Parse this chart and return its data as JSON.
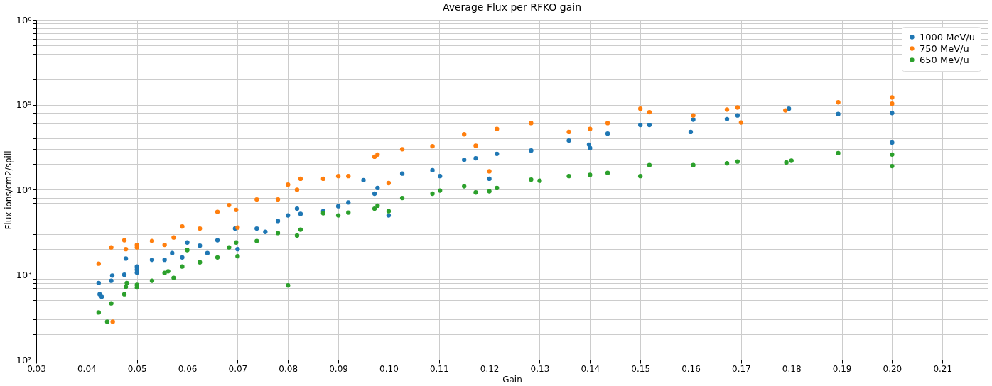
{
  "chart_data": {
    "type": "scatter",
    "title": "Average Flux per RFKO gain",
    "xlabel": "Gain",
    "ylabel": "Flux ions/cm2/spill",
    "log": "y",
    "grid": true,
    "legend": "top right",
    "marker": "circle",
    "xlim": [
      0.03,
      0.219
    ],
    "ylim": [
      100,
      1000000
    ],
    "xticks": [
      0.03,
      0.04,
      0.05,
      0.06,
      0.07,
      0.08,
      0.09,
      {
        "value": 0.1,
        "label": "0.10"
      },
      0.11,
      0.12,
      0.13,
      0.14,
      0.15,
      0.16,
      0.17,
      0.18,
      0.19,
      {
        "value": 0.2,
        "label": "0.20"
      },
      0.21
    ],
    "yticks": [
      {
        "value": 100,
        "label": "10²"
      },
      {
        "value": 200,
        "label": null
      },
      {
        "value": 300,
        "label": null
      },
      {
        "value": 400,
        "label": null
      },
      {
        "value": 500,
        "label": null
      },
      {
        "value": 600,
        "label": null
      },
      {
        "value": 700,
        "label": null
      },
      {
        "value": 800,
        "label": null
      },
      {
        "value": 900,
        "label": null
      },
      {
        "value": 1000,
        "label": "10³"
      },
      {
        "value": 2000,
        "label": null
      },
      {
        "value": 3000,
        "label": null
      },
      {
        "value": 4000,
        "label": null
      },
      {
        "value": 5000,
        "label": null
      },
      {
        "value": 6000,
        "label": null
      },
      {
        "value": 7000,
        "label": null
      },
      {
        "value": 8000,
        "label": null
      },
      {
        "value": 9000,
        "label": null
      },
      {
        "value": 10000,
        "label": "10⁴"
      },
      {
        "value": 20000,
        "label": null
      },
      {
        "value": 30000,
        "label": null
      },
      {
        "value": 40000,
        "label": null
      },
      {
        "value": 50000,
        "label": null
      },
      {
        "value": 60000,
        "label": null
      },
      {
        "value": 70000,
        "label": null
      },
      {
        "value": 80000,
        "label": null
      },
      {
        "value": 90000,
        "label": null
      },
      {
        "value": 100000,
        "label": "10⁵"
      },
      {
        "value": 200000,
        "label": null
      },
      {
        "value": 300000,
        "label": null
      },
      {
        "value": 400000,
        "label": null
      },
      {
        "value": 500000,
        "label": null
      },
      {
        "value": 600000,
        "label": null
      },
      {
        "value": 700000,
        "label": null
      },
      {
        "value": 800000,
        "label": null
      },
      {
        "value": 900000,
        "label": null
      },
      {
        "value": 1000000,
        "label": "10⁶"
      }
    ],
    "series": [
      {
        "name": "1000 MeV/u",
        "color": "#1f77b4",
        "x": [
          0.0424,
          0.0426,
          0.043,
          0.0449,
          0.0451,
          0.0475,
          0.0478,
          0.05,
          0.05,
          0.05,
          0.053,
          0.0555,
          0.057,
          0.059,
          0.06,
          0.0625,
          0.064,
          0.066,
          0.0695,
          0.07,
          0.0738,
          0.0755,
          0.078,
          0.08,
          0.0818,
          0.0825,
          0.087,
          0.09,
          0.092,
          0.095,
          0.0972,
          0.0978,
          0.1,
          0.1027,
          0.1087,
          0.1102,
          0.115,
          0.1173,
          0.12,
          0.1215,
          0.1283,
          0.1358,
          0.1398,
          0.14,
          0.1435,
          0.15,
          0.1518,
          0.16,
          0.1605,
          0.1672,
          0.1693,
          0.1795,
          0.1893,
          0.2,
          0.2
        ],
        "values": [
          800,
          590,
          550,
          850,
          980,
          1000,
          1550,
          1060,
          1250,
          1150,
          1500,
          1500,
          1800,
          1600,
          2400,
          2200,
          1800,
          2550,
          3500,
          2000,
          3500,
          3200,
          4300,
          5000,
          6000,
          5200,
          5600,
          6400,
          7100,
          13000,
          9000,
          10500,
          5000,
          15500,
          17000,
          14500,
          22500,
          23500,
          13500,
          26500,
          29000,
          38000,
          34000,
          31000,
          46000,
          58000,
          58000,
          48000,
          67000,
          68000,
          75000,
          90000,
          78000,
          80000,
          36000
        ]
      },
      {
        "name": "750 MeV/u",
        "color": "#ff7f0e",
        "x": [
          0.0424,
          0.0449,
          0.0452,
          0.0475,
          0.0478,
          0.05,
          0.05,
          0.053,
          0.0555,
          0.0573,
          0.059,
          0.0625,
          0.066,
          0.0683,
          0.0697,
          0.07,
          0.0738,
          0.078,
          0.08,
          0.0818,
          0.0825,
          0.087,
          0.09,
          0.092,
          0.0972,
          0.0978,
          0.1,
          0.1027,
          0.1087,
          0.115,
          0.1173,
          0.12,
          0.1215,
          0.1283,
          0.1358,
          0.14,
          0.1435,
          0.15,
          0.1518,
          0.1605,
          0.1672,
          0.1693,
          0.17,
          0.1788,
          0.1893,
          0.2,
          0.2
        ],
        "values": [
          1350,
          2100,
          280,
          2550,
          2000,
          2100,
          2250,
          2500,
          2250,
          2750,
          3700,
          3500,
          5500,
          6600,
          5800,
          3600,
          7700,
          7700,
          11500,
          10000,
          13500,
          13500,
          14500,
          14500,
          24500,
          26000,
          12000,
          30000,
          32500,
          45000,
          33000,
          16500,
          52000,
          61000,
          48000,
          52000,
          61000,
          90000,
          82000,
          75000,
          88000,
          93000,
          62000,
          86000,
          107000,
          122000,
          103000
        ]
      },
      {
        "name": "650 MeV/u",
        "color": "#2ca02c",
        "x": [
          0.0424,
          0.0441,
          0.0449,
          0.0475,
          0.0478,
          0.048,
          0.05,
          0.05,
          0.053,
          0.0555,
          0.0562,
          0.0573,
          0.059,
          0.06,
          0.0625,
          0.066,
          0.0683,
          0.0697,
          0.07,
          0.0738,
          0.078,
          0.08,
          0.0818,
          0.0825,
          0.087,
          0.09,
          0.092,
          0.0972,
          0.0978,
          0.1,
          0.1027,
          0.1087,
          0.1102,
          0.115,
          0.1173,
          0.12,
          0.1215,
          0.1283,
          0.13,
          0.1358,
          0.14,
          0.1435,
          0.15,
          0.1518,
          0.1605,
          0.1672,
          0.1693,
          0.179,
          0.18,
          0.1893,
          0.2,
          0.2
        ],
        "values": [
          360,
          280,
          460,
          590,
          720,
          800,
          710,
          760,
          850,
          1050,
          1100,
          920,
          1250,
          1950,
          1400,
          1600,
          2100,
          2400,
          1650,
          2500,
          3100,
          750,
          2900,
          3400,
          5300,
          5000,
          5400,
          6000,
          6500,
          5600,
          8000,
          9000,
          9800,
          11000,
          9300,
          9600,
          10500,
          13200,
          12800,
          14500,
          15000,
          15800,
          14500,
          19500,
          19500,
          20500,
          21500,
          21000,
          22000,
          27000,
          26000,
          19000
        ]
      }
    ]
  }
}
